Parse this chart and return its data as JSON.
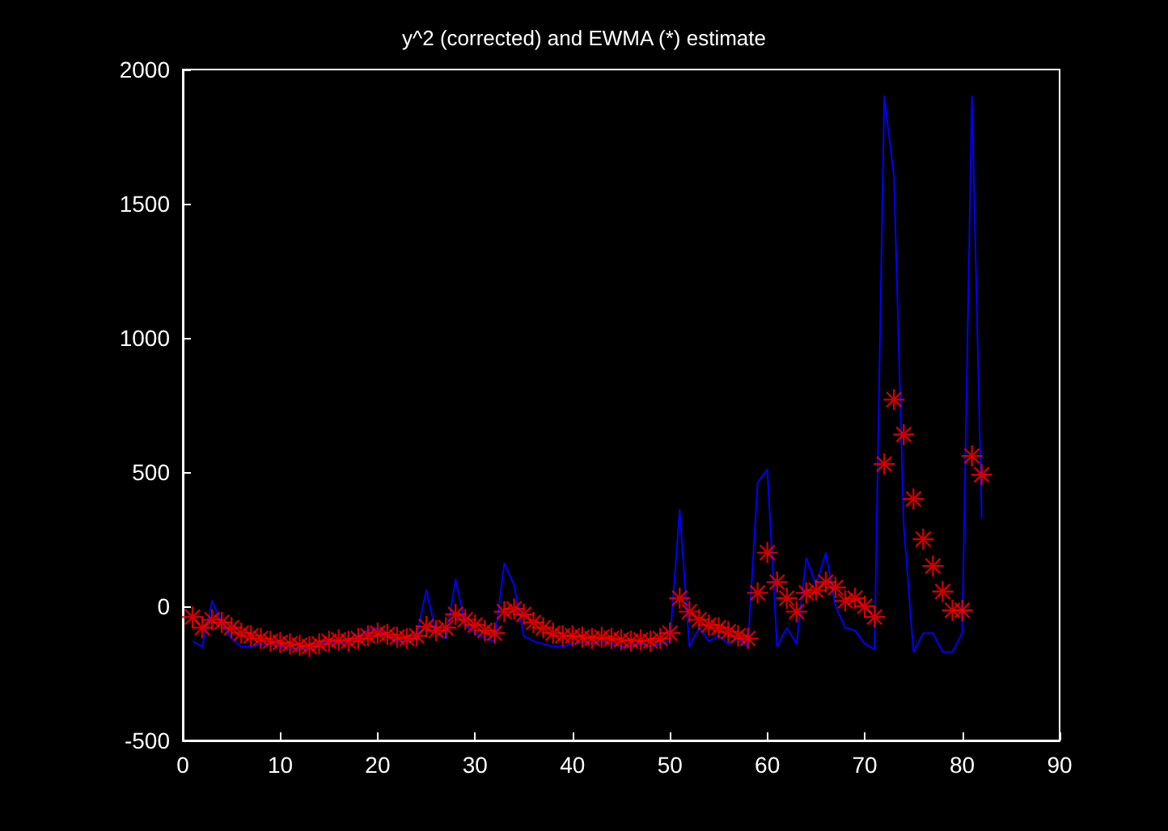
{
  "chart_data": {
    "type": "line",
    "title": "y^2 (corrected) and EWMA (*) estimate",
    "xlim": [
      0,
      90
    ],
    "xticks": [
      0,
      10,
      20,
      30,
      40,
      50,
      60,
      70,
      80,
      90
    ],
    "ylim": [
      -500,
      2000
    ],
    "yticks": [
      -500,
      0,
      500,
      1000,
      1500,
      2000
    ],
    "grid": false,
    "series": [
      {
        "color": "#0000ff",
        "marker": "none",
        "x": [
          1,
          2,
          3,
          4,
          5,
          6,
          7,
          8,
          9,
          10,
          11,
          12,
          13,
          14,
          15,
          16,
          17,
          18,
          19,
          20,
          21,
          22,
          23,
          24,
          25,
          26,
          27,
          28,
          29,
          30,
          31,
          32,
          33,
          34,
          35,
          36,
          37,
          38,
          39,
          40,
          41,
          42,
          43,
          44,
          45,
          46,
          47,
          48,
          49,
          50,
          51,
          52,
          53,
          54,
          55,
          56,
          57,
          58,
          59,
          60,
          61,
          62,
          63,
          64,
          65,
          66,
          67,
          68,
          69,
          70,
          71,
          72,
          73,
          74,
          75,
          76,
          77,
          78,
          79,
          80,
          81,
          82
        ],
        "values": [
          -130,
          -150,
          20,
          -60,
          -120,
          -150,
          -150,
          -140,
          -140,
          -150,
          -155,
          -160,
          -160,
          -140,
          -130,
          -140,
          -130,
          -110,
          -90,
          -80,
          -110,
          -130,
          -130,
          -110,
          60,
          -100,
          -120,
          100,
          -70,
          -100,
          -120,
          -130,
          160,
          80,
          -110,
          -130,
          -140,
          -150,
          -150,
          -140,
          -130,
          -140,
          -130,
          -140,
          -150,
          -150,
          -140,
          -150,
          -140,
          -130,
          360,
          -150,
          -80,
          -130,
          -110,
          -140,
          -120,
          -150,
          460,
          510,
          -150,
          -80,
          -140,
          180,
          80,
          200,
          0,
          -80,
          -90,
          -140,
          -160,
          1900,
          1600,
          300,
          -170,
          -100,
          -100,
          -170,
          -170,
          -100,
          1900,
          330
        ]
      },
      {
        "type": "scatter",
        "color": "#ff0000",
        "marker": "cross",
        "x": [
          1,
          2,
          3,
          4,
          5,
          6,
          7,
          8,
          9,
          10,
          11,
          12,
          13,
          14,
          15,
          16,
          17,
          18,
          19,
          20,
          21,
          22,
          23,
          24,
          25,
          26,
          27,
          28,
          29,
          30,
          31,
          32,
          33,
          34,
          35,
          36,
          37,
          38,
          39,
          40,
          41,
          42,
          43,
          44,
          45,
          46,
          47,
          48,
          49,
          50,
          51,
          52,
          53,
          54,
          55,
          56,
          57,
          58,
          59,
          60,
          61,
          62,
          63,
          64,
          65,
          66,
          67,
          68,
          69,
          70,
          71,
          72,
          73,
          74,
          75,
          76,
          77,
          78,
          79,
          80,
          81,
          82
        ],
        "values": [
          -40,
          -80,
          -50,
          -60,
          -80,
          -100,
          -110,
          -120,
          -130,
          -135,
          -140,
          -145,
          -150,
          -140,
          -130,
          -125,
          -130,
          -120,
          -110,
          -100,
          -105,
          -115,
          -120,
          -110,
          -75,
          -90,
          -80,
          -30,
          -50,
          -70,
          -90,
          -100,
          -20,
          -10,
          -30,
          -60,
          -80,
          -100,
          -110,
          -110,
          -115,
          -120,
          -115,
          -120,
          -125,
          -130,
          -125,
          -130,
          -120,
          -100,
          30,
          -20,
          -50,
          -70,
          -80,
          -95,
          -110,
          -120,
          50,
          200,
          90,
          30,
          -20,
          50,
          60,
          90,
          70,
          20,
          30,
          0,
          -40,
          530,
          770,
          640,
          400,
          250,
          150,
          55,
          -15,
          -15,
          560,
          490
        ]
      }
    ]
  }
}
